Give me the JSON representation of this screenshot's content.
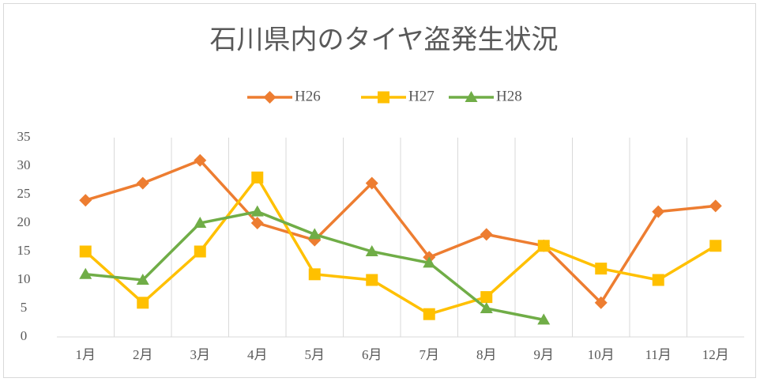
{
  "chart_data": {
    "type": "line",
    "title": "石川県内のタイヤ盗発生状況",
    "categories": [
      "1月",
      "2月",
      "3月",
      "4月",
      "5月",
      "6月",
      "7月",
      "8月",
      "9月",
      "10月",
      "11月",
      "12月"
    ],
    "series": [
      {
        "name": "H26",
        "color": "#ed7d31",
        "marker": "diamond",
        "values": [
          24,
          27,
          31,
          20,
          17,
          27,
          14,
          18,
          16,
          6,
          22,
          23
        ]
      },
      {
        "name": "H27",
        "color": "#ffc000",
        "marker": "square",
        "values": [
          15,
          6,
          15,
          28,
          11,
          10,
          4,
          7,
          16,
          12,
          10,
          16
        ]
      },
      {
        "name": "H28",
        "color": "#70ad47",
        "marker": "triangle",
        "values": [
          11,
          10,
          20,
          22,
          18,
          15,
          13,
          5,
          3,
          null,
          null,
          null
        ]
      }
    ],
    "ylim": [
      0,
      35
    ],
    "yticks": [
      0,
      5,
      10,
      15,
      20,
      25,
      30,
      35
    ],
    "grid": "x",
    "legend": "top"
  }
}
